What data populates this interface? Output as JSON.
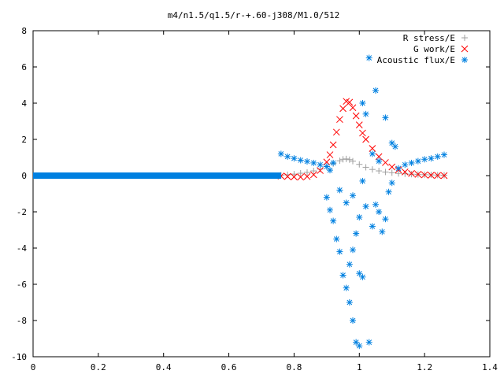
{
  "chart_data": {
    "type": "scatter",
    "title": "m4/n1.5/q1.5/r-+.60-j308/M1.0/512",
    "xlabel": "",
    "ylabel": "",
    "xlim": [
      0,
      1.4
    ],
    "ylim": [
      -10,
      8
    ],
    "x_ticks": [
      0,
      0.2,
      0.4,
      0.6,
      0.8,
      1,
      1.2,
      1.4
    ],
    "x_tick_labels": [
      "0",
      "0.2",
      "0.4",
      "0.6",
      "0.8",
      "1",
      "1.2",
      "1.4"
    ],
    "y_ticks": [
      -10,
      -8,
      -6,
      -4,
      -2,
      0,
      2,
      4,
      6,
      8
    ],
    "y_tick_labels": [
      "-10",
      "-8",
      "-6",
      "-4",
      "-2",
      "0",
      "2",
      "4",
      "6",
      "8"
    ],
    "grid": false,
    "legend_position": "top-right",
    "series": [
      {
        "name": "R stress/E",
        "marker": "plus",
        "color": "#a0a0a0",
        "points": [
          [
            0.76,
            0.02
          ],
          [
            0.78,
            0.05
          ],
          [
            0.8,
            0.08
          ],
          [
            0.82,
            0.13
          ],
          [
            0.84,
            0.18
          ],
          [
            0.86,
            0.26
          ],
          [
            0.88,
            0.36
          ],
          [
            0.9,
            0.5
          ],
          [
            0.92,
            0.66
          ],
          [
            0.94,
            0.82
          ],
          [
            0.95,
            0.9
          ],
          [
            0.96,
            0.92
          ],
          [
            0.97,
            0.88
          ],
          [
            0.98,
            0.8
          ],
          [
            1.0,
            0.62
          ],
          [
            1.02,
            0.46
          ],
          [
            1.04,
            0.34
          ],
          [
            1.06,
            0.26
          ],
          [
            1.08,
            0.2
          ],
          [
            1.1,
            0.16
          ],
          [
            1.12,
            0.12
          ],
          [
            1.14,
            0.1
          ],
          [
            1.16,
            0.08
          ],
          [
            1.18,
            0.06
          ],
          [
            1.2,
            0.05
          ],
          [
            1.22,
            0.04
          ],
          [
            1.24,
            0.03
          ],
          [
            1.26,
            0.02
          ]
        ]
      },
      {
        "name": "G work/E",
        "marker": "cross",
        "color": "#ff0000",
        "points": [
          [
            0.76,
            -0.02
          ],
          [
            0.78,
            -0.05
          ],
          [
            0.8,
            -0.07
          ],
          [
            0.82,
            -0.08
          ],
          [
            0.84,
            -0.05
          ],
          [
            0.86,
            0.05
          ],
          [
            0.88,
            0.28
          ],
          [
            0.9,
            0.75
          ],
          [
            0.91,
            1.15
          ],
          [
            0.92,
            1.7
          ],
          [
            0.93,
            2.4
          ],
          [
            0.94,
            3.1
          ],
          [
            0.95,
            3.7
          ],
          [
            0.96,
            4.1
          ],
          [
            0.97,
            4.05
          ],
          [
            0.98,
            3.75
          ],
          [
            0.99,
            3.3
          ],
          [
            1.0,
            2.8
          ],
          [
            1.01,
            2.35
          ],
          [
            1.02,
            2.0
          ],
          [
            1.04,
            1.5
          ],
          [
            1.06,
            1.05
          ],
          [
            1.08,
            0.72
          ],
          [
            1.1,
            0.48
          ],
          [
            1.12,
            0.32
          ],
          [
            1.14,
            0.2
          ],
          [
            1.16,
            0.12
          ],
          [
            1.18,
            0.07
          ],
          [
            1.2,
            0.04
          ],
          [
            1.22,
            0.02
          ],
          [
            1.24,
            0.01
          ],
          [
            1.26,
            0.0
          ]
        ]
      },
      {
        "name": "Acoustic flux/E",
        "marker": "star",
        "color": "#0080e0",
        "points": [
          [
            0.76,
            1.2
          ],
          [
            0.78,
            1.05
          ],
          [
            0.8,
            0.95
          ],
          [
            0.82,
            0.85
          ],
          [
            0.84,
            0.78
          ],
          [
            0.86,
            0.7
          ],
          [
            0.88,
            0.6
          ],
          [
            0.9,
            0.5
          ],
          [
            0.91,
            0.3
          ],
          [
            0.92,
            0.7
          ],
          [
            0.9,
            -1.2
          ],
          [
            0.91,
            -1.9
          ],
          [
            0.92,
            -2.5
          ],
          [
            0.93,
            -3.5
          ],
          [
            0.94,
            -4.2
          ],
          [
            0.95,
            -5.5
          ],
          [
            0.96,
            -6.2
          ],
          [
            0.97,
            -7.0
          ],
          [
            0.98,
            -8.0
          ],
          [
            0.99,
            -9.2
          ],
          [
            1.0,
            -9.4
          ],
          [
            1.03,
            -9.2
          ],
          [
            1.0,
            -5.4
          ],
          [
            1.01,
            -5.6
          ],
          [
            0.97,
            -4.9
          ],
          [
            0.98,
            -4.1
          ],
          [
            0.99,
            -3.2
          ],
          [
            1.0,
            -2.3
          ],
          [
            0.94,
            -0.8
          ],
          [
            0.96,
            -1.5
          ],
          [
            0.98,
            -1.1
          ],
          [
            1.01,
            -0.3
          ],
          [
            1.02,
            -1.7
          ],
          [
            1.04,
            -2.8
          ],
          [
            1.05,
            -1.6
          ],
          [
            1.06,
            -2.0
          ],
          [
            1.07,
            -3.1
          ],
          [
            1.08,
            -2.4
          ],
          [
            1.09,
            -0.9
          ],
          [
            1.1,
            -0.4
          ],
          [
            1.03,
            6.5
          ],
          [
            1.05,
            4.7
          ],
          [
            1.01,
            4.0
          ],
          [
            1.02,
            3.4
          ],
          [
            1.08,
            3.2
          ],
          [
            1.1,
            1.8
          ],
          [
            1.11,
            1.6
          ],
          [
            1.04,
            1.2
          ],
          [
            1.06,
            0.8
          ],
          [
            1.12,
            0.4
          ],
          [
            1.14,
            0.6
          ],
          [
            1.16,
            0.7
          ],
          [
            1.18,
            0.8
          ],
          [
            1.2,
            0.9
          ],
          [
            1.22,
            0.95
          ],
          [
            1.24,
            1.05
          ],
          [
            1.26,
            1.15
          ]
        ]
      },
      {
        "name": "",
        "marker": "star",
        "color": "#0080e0",
        "points": [
          [
            0,
            0.0
          ],
          [
            0.76,
            0.0
          ]
        ]
      }
    ]
  }
}
